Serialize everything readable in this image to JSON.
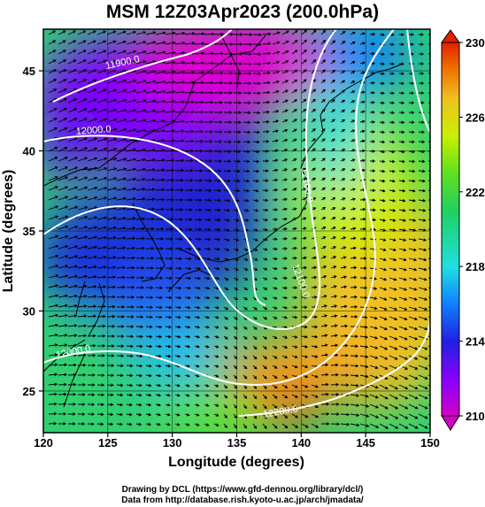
{
  "title": "MSM 12Z03Apr2023 (200.0hPa)",
  "xaxis": {
    "label": "Longitude (degrees)",
    "ticks": [
      "120",
      "125",
      "130",
      "135",
      "140",
      "145",
      "150"
    ],
    "range": [
      120,
      150
    ]
  },
  "yaxis": {
    "label": "Latitude  (degrees)",
    "ticks": [
      "25",
      "30",
      "35",
      "40",
      "45"
    ],
    "range": [
      22.4,
      47.6
    ]
  },
  "colorbar": {
    "ticks": [
      "210",
      "214",
      "218",
      "222",
      "226",
      "230"
    ],
    "range": [
      210,
      230
    ],
    "colors": [
      "#d400c8",
      "#8800ff",
      "#2020e0",
      "#1080ff",
      "#20e0e0",
      "#20d060",
      "#60e020",
      "#c8f000",
      "#f0c020",
      "#f07000",
      "#e02000"
    ]
  },
  "contour_labels": [
    "11900.0",
    "12000.0",
    "12000.0",
    "12100.0",
    "12100.0",
    "12200.0"
  ],
  "footer": {
    "line1": "Drawing by DCL (https://www.gfd-dennou.org/library/dcl/)",
    "line2": "Data from http://database.rish.kyoto-u.ac.jp/arch/jmadata/"
  }
}
